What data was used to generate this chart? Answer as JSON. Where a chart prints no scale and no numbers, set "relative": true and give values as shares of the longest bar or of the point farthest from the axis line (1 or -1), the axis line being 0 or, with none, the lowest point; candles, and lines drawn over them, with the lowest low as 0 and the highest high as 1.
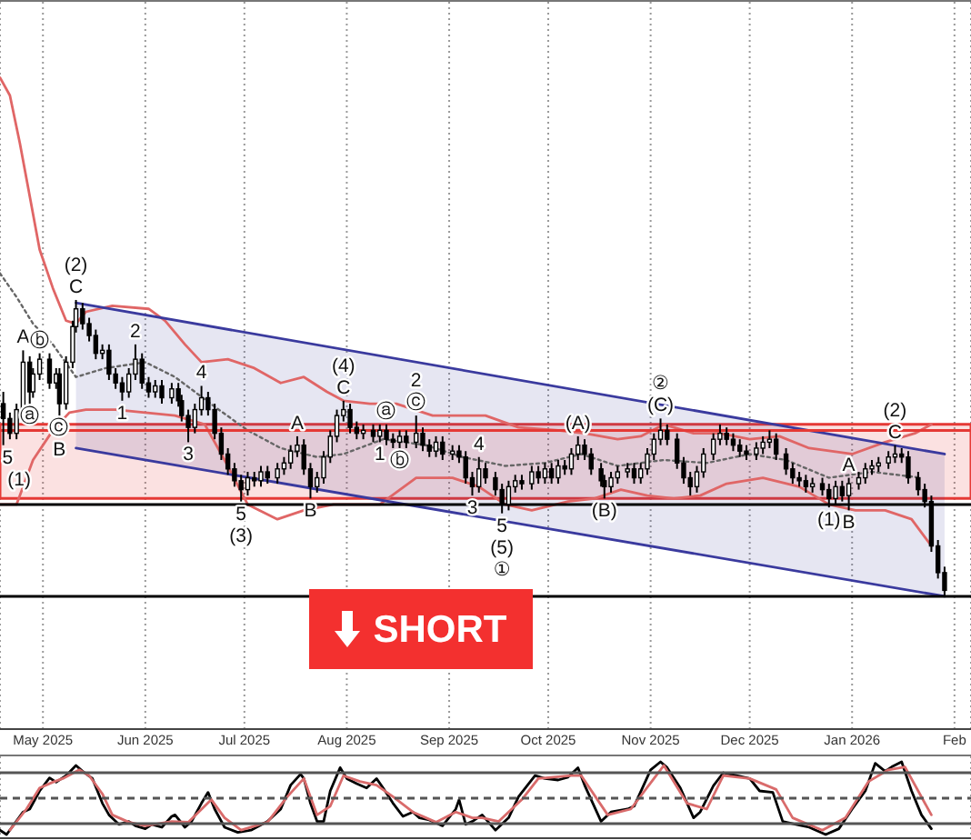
{
  "chart_data": [
    {
      "type": "candlestick",
      "relative": true,
      "color": "#000000",
      "grid": "x",
      "xlim": [
        "2025-04-18",
        "2026-02-06"
      ],
      "xticks": [
        {
          "value": "2025-05",
          "label": "May 2025"
        },
        {
          "value": "2025-06",
          "label": "Jun 2025"
        },
        {
          "value": "2025-07",
          "label": "Jul 2025"
        },
        {
          "value": "2025-08",
          "label": "Aug 2025"
        },
        {
          "value": "2025-09",
          "label": "Sep 2025"
        },
        {
          "value": "2025-10",
          "label": "Oct 2025"
        },
        {
          "value": "2025-11",
          "label": "Nov 2025"
        },
        {
          "value": "2025-12",
          "label": "Dec 2025"
        },
        {
          "value": "2026-01",
          "label": "Jan 2026"
        },
        {
          "value": "2026-02",
          "label": "Feb"
        }
      ],
      "x": [
        "2025-04-19",
        "2025-04-21",
        "2025-04-23",
        "2025-04-25",
        "2025-04-27",
        "2025-04-28",
        "2025-04-30",
        "2025-05-03",
        "2025-05-05",
        "2025-05-06",
        "2025-05-08",
        "2025-05-10",
        "2025-05-11",
        "2025-05-13",
        "2025-05-15",
        "2025-05-17",
        "2025-05-19",
        "2025-05-21",
        "2025-05-23",
        "2025-05-25",
        "2025-05-27",
        "2025-05-29",
        "2025-05-31",
        "2025-06-02",
        "2025-06-04",
        "2025-06-06",
        "2025-06-09",
        "2025-06-11",
        "2025-06-12",
        "2025-06-14",
        "2025-06-16",
        "2025-06-18",
        "2025-06-20",
        "2025-06-22",
        "2025-06-24",
        "2025-06-26",
        "2025-06-28",
        "2025-06-30",
        "2025-07-02",
        "2025-07-04",
        "2025-07-06",
        "2025-07-08",
        "2025-07-11",
        "2025-07-13",
        "2025-07-15",
        "2025-07-17",
        "2025-07-19",
        "2025-07-21",
        "2025-07-23",
        "2025-07-25",
        "2025-07-27",
        "2025-07-29",
        "2025-07-31",
        "2025-08-02",
        "2025-08-04",
        "2025-08-06",
        "2025-08-09",
        "2025-08-11",
        "2025-08-13",
        "2025-08-15",
        "2025-08-17",
        "2025-08-19",
        "2025-08-22",
        "2025-08-24",
        "2025-08-26",
        "2025-08-28",
        "2025-08-30",
        "2025-09-02",
        "2025-09-04",
        "2025-09-06",
        "2025-09-08",
        "2025-09-10",
        "2025-09-12",
        "2025-09-15",
        "2025-09-17",
        "2025-09-19",
        "2025-09-21",
        "2025-09-23",
        "2025-09-26",
        "2025-09-28",
        "2025-09-30",
        "2025-10-02",
        "2025-10-04",
        "2025-10-06",
        "2025-10-08",
        "2025-10-10",
        "2025-10-12",
        "2025-10-14",
        "2025-10-17",
        "2025-10-18",
        "2025-10-20",
        "2025-10-22",
        "2025-10-25",
        "2025-10-27",
        "2025-10-29",
        "2025-10-31",
        "2025-11-02",
        "2025-11-04",
        "2025-11-06",
        "2025-11-09",
        "2025-11-11",
        "2025-11-13",
        "2025-11-15",
        "2025-11-17",
        "2025-11-20",
        "2025-11-22",
        "2025-11-24",
        "2025-11-26",
        "2025-11-28",
        "2025-11-30",
        "2025-12-03",
        "2025-12-05",
        "2025-12-07",
        "2025-12-09",
        "2025-12-12",
        "2025-12-14",
        "2025-12-16",
        "2025-12-18",
        "2025-12-20",
        "2025-12-23",
        "2025-12-25",
        "2025-12-27",
        "2025-12-29",
        "2025-12-31",
        "2026-01-03",
        "2026-01-05",
        "2026-01-07",
        "2026-01-09",
        "2026-01-12",
        "2026-01-14",
        "2026-01-16",
        "2026-01-18",
        "2026-01-21",
        "2026-01-23",
        "2026-01-25",
        "2026-01-27",
        "2026-01-29"
      ],
      "ohlc": [
        [
          0.65,
          0.69,
          0.51,
          0.6
        ],
        [
          0.6,
          0.62,
          0.53,
          0.55
        ],
        [
          0.55,
          0.65,
          0.53,
          0.63
        ],
        [
          0.63,
          0.83,
          0.61,
          0.79
        ],
        [
          0.79,
          0.81,
          0.65,
          0.69
        ],
        [
          0.69,
          0.77,
          0.67,
          0.75
        ],
        [
          0.75,
          0.82,
          0.73,
          0.8
        ],
        [
          0.8,
          0.82,
          0.7,
          0.72
        ],
        [
          0.72,
          0.77,
          0.7,
          0.75
        ],
        [
          0.75,
          0.77,
          0.61,
          0.65
        ],
        [
          0.65,
          0.81,
          0.63,
          0.79
        ],
        [
          0.79,
          0.93,
          0.77,
          0.91
        ],
        [
          0.91,
          1.0,
          0.89,
          0.97
        ],
        [
          0.97,
          0.99,
          0.9,
          0.92
        ],
        [
          0.92,
          0.94,
          0.86,
          0.88
        ],
        [
          0.88,
          0.9,
          0.8,
          0.82
        ],
        [
          0.82,
          0.85,
          0.8,
          0.83
        ],
        [
          0.83,
          0.85,
          0.73,
          0.75
        ],
        [
          0.75,
          0.77,
          0.7,
          0.72
        ],
        [
          0.72,
          0.74,
          0.66,
          0.69
        ],
        [
          0.69,
          0.77,
          0.67,
          0.75
        ],
        [
          0.75,
          0.85,
          0.73,
          0.8
        ],
        [
          0.8,
          0.82,
          0.7,
          0.72
        ],
        [
          0.72,
          0.74,
          0.67,
          0.69
        ],
        [
          0.69,
          0.73,
          0.67,
          0.71
        ],
        [
          0.71,
          0.73,
          0.65,
          0.67
        ],
        [
          0.67,
          0.72,
          0.65,
          0.7
        ],
        [
          0.7,
          0.72,
          0.64,
          0.66
        ],
        [
          0.66,
          0.68,
          0.59,
          0.61
        ],
        [
          0.61,
          0.63,
          0.52,
          0.57
        ],
        [
          0.57,
          0.65,
          0.55,
          0.63
        ],
        [
          0.63,
          0.71,
          0.61,
          0.67
        ],
        [
          0.67,
          0.69,
          0.61,
          0.63
        ],
        [
          0.63,
          0.65,
          0.53,
          0.55
        ],
        [
          0.55,
          0.57,
          0.46,
          0.48
        ],
        [
          0.48,
          0.5,
          0.41,
          0.43
        ],
        [
          0.43,
          0.45,
          0.37,
          0.39
        ],
        [
          0.39,
          0.41,
          0.32,
          0.36
        ],
        [
          0.36,
          0.42,
          0.34,
          0.4
        ],
        [
          0.4,
          0.42,
          0.37,
          0.39
        ],
        [
          0.39,
          0.44,
          0.37,
          0.42
        ],
        [
          0.42,
          0.44,
          0.38,
          0.4
        ],
        [
          0.4,
          0.45,
          0.38,
          0.43
        ],
        [
          0.43,
          0.47,
          0.41,
          0.45
        ],
        [
          0.45,
          0.51,
          0.43,
          0.49
        ],
        [
          0.49,
          0.54,
          0.47,
          0.51
        ],
        [
          0.51,
          0.53,
          0.41,
          0.43
        ],
        [
          0.43,
          0.45,
          0.33,
          0.37
        ],
        [
          0.37,
          0.42,
          0.35,
          0.4
        ],
        [
          0.4,
          0.49,
          0.38,
          0.47
        ],
        [
          0.47,
          0.56,
          0.45,
          0.54
        ],
        [
          0.54,
          0.63,
          0.52,
          0.61
        ],
        [
          0.61,
          0.66,
          0.59,
          0.63
        ],
        [
          0.63,
          0.65,
          0.55,
          0.57
        ],
        [
          0.57,
          0.59,
          0.53,
          0.55
        ],
        [
          0.55,
          0.58,
          0.53,
          0.56
        ],
        [
          0.56,
          0.58,
          0.52,
          0.54
        ],
        [
          0.54,
          0.58,
          0.52,
          0.56
        ],
        [
          0.56,
          0.58,
          0.51,
          0.53
        ],
        [
          0.53,
          0.55,
          0.5,
          0.52
        ],
        [
          0.52,
          0.56,
          0.5,
          0.54
        ],
        [
          0.54,
          0.56,
          0.5,
          0.52
        ],
        [
          0.52,
          0.61,
          0.5,
          0.55
        ],
        [
          0.55,
          0.57,
          0.49,
          0.51
        ],
        [
          0.51,
          0.53,
          0.47,
          0.49
        ],
        [
          0.49,
          0.54,
          0.47,
          0.52
        ],
        [
          0.52,
          0.54,
          0.46,
          0.48
        ],
        [
          0.48,
          0.51,
          0.46,
          0.49
        ],
        [
          0.49,
          0.51,
          0.45,
          0.47
        ],
        [
          0.47,
          0.49,
          0.38,
          0.4
        ],
        [
          0.4,
          0.42,
          0.34,
          0.37
        ],
        [
          0.37,
          0.47,
          0.35,
          0.43
        ],
        [
          0.43,
          0.45,
          0.38,
          0.4
        ],
        [
          0.4,
          0.42,
          0.34,
          0.36
        ],
        [
          0.36,
          0.38,
          0.28,
          0.31
        ],
        [
          0.31,
          0.39,
          0.29,
          0.37
        ],
        [
          0.37,
          0.41,
          0.35,
          0.39
        ],
        [
          0.39,
          0.41,
          0.36,
          0.38
        ],
        [
          0.38,
          0.44,
          0.36,
          0.42
        ],
        [
          0.42,
          0.44,
          0.38,
          0.4
        ],
        [
          0.4,
          0.45,
          0.38,
          0.43
        ],
        [
          0.43,
          0.45,
          0.38,
          0.4
        ],
        [
          0.4,
          0.46,
          0.38,
          0.44
        ],
        [
          0.44,
          0.46,
          0.41,
          0.43
        ],
        [
          0.43,
          0.5,
          0.41,
          0.48
        ],
        [
          0.48,
          0.54,
          0.46,
          0.51
        ],
        [
          0.51,
          0.53,
          0.46,
          0.48
        ],
        [
          0.48,
          0.5,
          0.41,
          0.43
        ],
        [
          0.43,
          0.45,
          0.37,
          0.39
        ],
        [
          0.39,
          0.41,
          0.33,
          0.37
        ],
        [
          0.37,
          0.42,
          0.35,
          0.4
        ],
        [
          0.4,
          0.44,
          0.38,
          0.42
        ],
        [
          0.42,
          0.45,
          0.4,
          0.43
        ],
        [
          0.43,
          0.45,
          0.38,
          0.4
        ],
        [
          0.4,
          0.45,
          0.38,
          0.43
        ],
        [
          0.43,
          0.5,
          0.41,
          0.48
        ],
        [
          0.48,
          0.55,
          0.46,
          0.53
        ],
        [
          0.53,
          0.6,
          0.51,
          0.56
        ],
        [
          0.56,
          0.58,
          0.51,
          0.53
        ],
        [
          0.53,
          0.55,
          0.43,
          0.45
        ],
        [
          0.45,
          0.47,
          0.38,
          0.4
        ],
        [
          0.4,
          0.42,
          0.34,
          0.37
        ],
        [
          0.37,
          0.44,
          0.35,
          0.42
        ],
        [
          0.42,
          0.5,
          0.4,
          0.48
        ],
        [
          0.48,
          0.55,
          0.46,
          0.53
        ],
        [
          0.53,
          0.58,
          0.51,
          0.55
        ],
        [
          0.55,
          0.57,
          0.51,
          0.53
        ],
        [
          0.53,
          0.55,
          0.49,
          0.51
        ],
        [
          0.51,
          0.53,
          0.47,
          0.49
        ],
        [
          0.49,
          0.51,
          0.46,
          0.48
        ],
        [
          0.48,
          0.52,
          0.46,
          0.5
        ],
        [
          0.5,
          0.54,
          0.48,
          0.52
        ],
        [
          0.52,
          0.56,
          0.5,
          0.53
        ],
        [
          0.53,
          0.55,
          0.46,
          0.48
        ],
        [
          0.48,
          0.5,
          0.41,
          0.43
        ],
        [
          0.43,
          0.45,
          0.38,
          0.4
        ],
        [
          0.4,
          0.42,
          0.37,
          0.39
        ],
        [
          0.39,
          0.41,
          0.35,
          0.37
        ],
        [
          0.37,
          0.4,
          0.35,
          0.38
        ],
        [
          0.38,
          0.4,
          0.34,
          0.36
        ],
        [
          0.36,
          0.38,
          0.3,
          0.33
        ],
        [
          0.33,
          0.39,
          0.31,
          0.37
        ],
        [
          0.37,
          0.39,
          0.32,
          0.34
        ],
        [
          0.34,
          0.4,
          0.29,
          0.38
        ],
        [
          0.38,
          0.42,
          0.36,
          0.4
        ],
        [
          0.4,
          0.45,
          0.38,
          0.43
        ],
        [
          0.43,
          0.46,
          0.41,
          0.44
        ],
        [
          0.44,
          0.47,
          0.42,
          0.45
        ],
        [
          0.45,
          0.49,
          0.43,
          0.47
        ],
        [
          0.47,
          0.51,
          0.45,
          0.48
        ],
        [
          0.48,
          0.5,
          0.45,
          0.47
        ],
        [
          0.47,
          0.49,
          0.38,
          0.4
        ],
        [
          0.4,
          0.42,
          0.34,
          0.36
        ],
        [
          0.36,
          0.38,
          0.3,
          0.32
        ],
        [
          0.32,
          0.34,
          0.15,
          0.17
        ],
        [
          0.17,
          0.19,
          0.06,
          0.08
        ],
        [
          0.08,
          0.1,
          0.0,
          0.02
        ]
      ],
      "series": [
        {
          "type": "line",
          "color": "#e06666",
          "x": [
            "2025-04-18",
            "2025-04-21",
            "2025-04-24",
            "2025-04-27",
            "2025-04-30",
            "2025-05-04",
            "2025-05-08",
            "2025-05-11",
            "2025-05-14",
            "2025-05-22",
            "2025-06-02",
            "2025-06-07",
            "2025-06-13",
            "2025-06-18",
            "2025-06-26",
            "2025-07-04",
            "2025-07-12",
            "2025-07-19",
            "2025-07-26",
            "2025-07-31",
            "2025-08-08",
            "2025-08-16",
            "2025-08-27",
            "2025-09-12",
            "2025-09-22",
            "2025-10-04",
            "2025-10-12",
            "2025-10-22",
            "2025-10-29",
            "2025-11-05",
            "2025-11-14",
            "2025-11-22",
            "2025-12-01",
            "2025-12-10",
            "2025-12-19",
            "2026-01-01",
            "2026-01-11",
            "2026-01-20",
            "2026-01-25"
          ],
          "values": [
            1.75,
            1.69,
            1.53,
            1.35,
            1.17,
            1.04,
            0.93,
            0.92,
            0.96,
            0.98,
            0.97,
            0.93,
            0.85,
            0.79,
            0.8,
            0.77,
            0.72,
            0.74,
            0.69,
            0.66,
            0.65,
            0.65,
            0.61,
            0.61,
            0.57,
            0.56,
            0.55,
            0.53,
            0.54,
            0.58,
            0.55,
            0.55,
            0.53,
            0.54,
            0.5,
            0.48,
            0.52,
            0.55,
            0.58
          ]
        },
        {
          "type": "line",
          "color": "#e06666",
          "x": [
            "2025-04-18",
            "2025-04-23",
            "2025-04-28",
            "2025-05-04",
            "2025-05-09",
            "2025-05-14",
            "2025-05-23",
            "2025-06-10",
            "2025-06-19",
            "2025-06-25",
            "2025-07-02",
            "2025-07-11",
            "2025-07-19",
            "2025-07-28",
            "2025-08-11",
            "2025-08-22",
            "2025-09-02",
            "2025-09-10",
            "2025-09-18",
            "2025-09-26",
            "2025-10-07",
            "2025-10-15",
            "2025-10-23",
            "2025-10-31",
            "2025-11-08",
            "2025-11-16",
            "2025-11-24",
            "2025-12-05",
            "2025-12-16",
            "2025-12-25",
            "2026-01-02",
            "2026-01-11",
            "2026-01-19",
            "2026-01-25"
          ],
          "values": [
            0.31,
            0.31,
            0.46,
            0.56,
            0.62,
            0.63,
            0.63,
            0.61,
            0.58,
            0.46,
            0.31,
            0.26,
            0.29,
            0.31,
            0.31,
            0.4,
            0.4,
            0.37,
            0.31,
            0.29,
            0.32,
            0.33,
            0.36,
            0.34,
            0.33,
            0.34,
            0.38,
            0.4,
            0.37,
            0.31,
            0.29,
            0.29,
            0.26,
            0.17
          ]
        },
        {
          "type": "line",
          "color": "#666666",
          "line_style": "dotted",
          "x": [
            "2025-04-18",
            "2025-04-23",
            "2025-04-28",
            "2025-05-04",
            "2025-05-11",
            "2025-05-20",
            "2025-06-01",
            "2025-06-10",
            "2025-06-22",
            "2025-07-02",
            "2025-07-12",
            "2025-07-23",
            "2025-07-31",
            "2025-08-12",
            "2025-08-25",
            "2025-09-05",
            "2025-09-18",
            "2025-09-30",
            "2025-10-11",
            "2025-10-22",
            "2025-11-05",
            "2025-11-18",
            "2025-12-01",
            "2025-12-12",
            "2025-12-25",
            "2026-01-07",
            "2026-01-22"
          ],
          "values": [
            1.09,
            1.01,
            0.92,
            0.85,
            0.74,
            0.77,
            0.79,
            0.74,
            0.64,
            0.56,
            0.5,
            0.47,
            0.48,
            0.53,
            0.51,
            0.47,
            0.44,
            0.45,
            0.48,
            0.44,
            0.46,
            0.45,
            0.48,
            0.46,
            0.4,
            0.42,
            0.4
          ]
        },
        {
          "type": "line",
          "color": "#3a3a9e",
          "x": [
            "2025-05-11",
            "2026-01-29"
          ],
          "values": [
            0.99,
            0.48
          ],
          "lower": [
            0.5,
            0
          ],
          "upper": [
            0.99,
            0.48
          ]
        },
        {
          "type": "line",
          "color": "#3a3a9e",
          "x": [
            "2025-05-11",
            "2026-01-29"
          ],
          "values": [
            0.5,
            0
          ]
        }
      ],
      "ref_lines": [
        {
          "axis": "y",
          "value": 0.56,
          "color": "#e53935"
        },
        {
          "axis": "y",
          "value": 0.31,
          "color": "#000000"
        },
        {
          "axis": "y",
          "value": 0,
          "color": "#000000"
        }
      ],
      "bands": [
        {
          "axis": "y",
          "from": 0.33,
          "to": 0.58,
          "color": "#e53935"
        }
      ],
      "annotations": [
        {
          "text": "5",
          "x": "2025-04-19",
          "y": 0.51
        },
        {
          "text": "(1)",
          "x": "2025-04-19",
          "y": 0.51
        },
        {
          "text": "A",
          "x": "2025-04-25",
          "y": 0.83
        },
        {
          "text": "ⓐ",
          "x": "2025-04-27",
          "y": 0.65
        },
        {
          "text": "ⓑ",
          "x": "2025-04-30",
          "y": 0.82
        },
        {
          "text": "ⓒ",
          "x": "2025-05-06",
          "y": 0.61
        },
        {
          "text": "B",
          "x": "2025-05-06",
          "y": 0.61
        },
        {
          "text": "(2)",
          "x": "2025-05-11",
          "y": 1.0
        },
        {
          "text": "C",
          "x": "2025-05-11",
          "y": 1.0
        },
        {
          "text": "1",
          "x": "2025-05-25",
          "y": 0.66
        },
        {
          "text": "2",
          "x": "2025-05-29",
          "y": 0.85
        },
        {
          "text": "3",
          "x": "2025-06-14",
          "y": 0.52
        },
        {
          "text": "4",
          "x": "2025-06-18",
          "y": 0.71
        },
        {
          "text": "5",
          "x": "2025-06-30",
          "y": 0.32
        },
        {
          "text": "(3)",
          "x": "2025-06-30",
          "y": 0.32
        },
        {
          "text": "A",
          "x": "2025-07-17",
          "y": 0.54
        },
        {
          "text": "B",
          "x": "2025-07-21",
          "y": 0.33
        },
        {
          "text": "(4)",
          "x": "2025-07-31",
          "y": 0.66
        },
        {
          "text": "C",
          "x": "2025-07-31",
          "y": 0.66
        },
        {
          "text": "1",
          "x": "2025-08-11",
          "y": 0.52
        },
        {
          "text": "ⓐ",
          "x": "2025-08-13",
          "y": 0.58
        },
        {
          "text": "ⓑ",
          "x": "2025-08-17",
          "y": 0.5
        },
        {
          "text": "2",
          "x": "2025-08-22",
          "y": 0.61
        },
        {
          "text": "ⓒ",
          "x": "2025-08-22",
          "y": 0.61
        },
        {
          "text": "3",
          "x": "2025-09-08",
          "y": 0.34
        },
        {
          "text": "4",
          "x": "2025-09-10",
          "y": 0.47
        },
        {
          "text": "5",
          "x": "2025-09-17",
          "y": 0.28
        },
        {
          "text": "(5)",
          "x": "2025-09-17",
          "y": 0.28
        },
        {
          "text": "①",
          "x": "2025-09-17",
          "y": 0.28
        },
        {
          "text": "(A)",
          "x": "2025-10-10",
          "y": 0.54
        },
        {
          "text": "(B)",
          "x": "2025-10-18",
          "y": 0.33
        },
        {
          "text": "②",
          "x": "2025-11-04",
          "y": 0.6
        },
        {
          "text": "(C)",
          "x": "2025-11-04",
          "y": 0.6
        },
        {
          "text": "(1)",
          "x": "2025-12-25",
          "y": 0.3
        },
        {
          "text": "A",
          "x": "2025-12-31",
          "y": 0.4
        },
        {
          "text": "B",
          "x": "2025-12-31",
          "y": 0.29
        },
        {
          "text": "(2)",
          "x": "2026-01-14",
          "y": 0.51
        },
        {
          "text": "C",
          "x": "2026-01-14",
          "y": 0.51
        },
        "SHORT"
      ]
    },
    {
      "type": "line",
      "relative": true,
      "grid": "x",
      "tick_labels": false,
      "xlim": [
        "2025-04-18",
        "2026-02-06"
      ],
      "xticks": [
        {
          "value": "2025-05",
          "label": null
        },
        {
          "value": "2025-06",
          "label": null
        },
        {
          "value": "2025-07",
          "label": null
        },
        {
          "value": "2025-08",
          "label": null
        },
        {
          "value": "2025-09",
          "label": null
        },
        {
          "value": "2025-10",
          "label": null
        },
        {
          "value": "2025-11",
          "label": null
        },
        {
          "value": "2025-12",
          "label": null
        },
        {
          "value": "2026-01",
          "label": null
        },
        {
          "value": "2026-02",
          "label": null
        }
      ],
      "series": [
        {
          "color": "#000000",
          "x": [
            "2025-04-18",
            "2025-04-20",
            "2025-04-25",
            "2025-04-27",
            "2025-04-30",
            "2025-05-03",
            "2025-05-05",
            "2025-05-08",
            "2025-05-11",
            "2025-05-13",
            "2025-05-16",
            "2025-05-19",
            "2025-05-21",
            "2025-05-24",
            "2025-05-27",
            "2025-05-29",
            "2025-06-01",
            "2025-06-03",
            "2025-06-06",
            "2025-06-09",
            "2025-06-10",
            "2025-06-13",
            "2025-06-15",
            "2025-06-18",
            "2025-06-20",
            "2025-06-22",
            "2025-06-25",
            "2025-06-29",
            "2025-07-03",
            "2025-07-08",
            "2025-07-12",
            "2025-07-15",
            "2025-07-18",
            "2025-07-19",
            "2025-07-21",
            "2025-07-23",
            "2025-07-25",
            "2025-07-27",
            "2025-07-30",
            "2025-08-01",
            "2025-08-04",
            "2025-08-07",
            "2025-08-10",
            "2025-08-12",
            "2025-08-15",
            "2025-08-18",
            "2025-08-21",
            "2025-08-23",
            "2025-08-26",
            "2025-08-30",
            "2025-09-03",
            "2025-09-04",
            "2025-09-06",
            "2025-09-08",
            "2025-09-11",
            "2025-09-15",
            "2025-09-19",
            "2025-09-22",
            "2025-09-27",
            "2025-09-30",
            "2025-10-04",
            "2025-10-07",
            "2025-10-10",
            "2025-10-12",
            "2025-10-17",
            "2025-10-20",
            "2025-10-25",
            "2025-10-27",
            "2025-11-01",
            "2025-11-04",
            "2025-11-06",
            "2025-11-10",
            "2025-11-14",
            "2025-11-16",
            "2025-11-20",
            "2025-11-23",
            "2025-11-27",
            "2025-12-01",
            "2025-12-04",
            "2025-12-08",
            "2025-12-11",
            "2025-12-15",
            "2025-12-19",
            "2025-12-24",
            "2025-12-28",
            "2026-01-01",
            "2026-01-05",
            "2026-01-08",
            "2026-01-11",
            "2026-01-13",
            "2026-01-16",
            "2026-01-19",
            "2026-01-22",
            "2026-01-25"
          ],
          "values": [
            0.06,
            0,
            0.31,
            0.35,
            0.6,
            0.78,
            0.72,
            0.81,
            0.95,
            0.87,
            0.77,
            0.43,
            0.27,
            0.14,
            0.18,
            0.12,
            0.08,
            0.14,
            0.1,
            0.25,
            0.27,
            0.1,
            0.18,
            0.43,
            0.58,
            0.35,
            0.1,
            0.03,
            0.06,
            0.18,
            0.35,
            0.68,
            0.83,
            0.77,
            0.43,
            0.18,
            0.18,
            0.6,
            0.92,
            0.77,
            0.7,
            0.64,
            0.77,
            0.64,
            0.43,
            0.25,
            0.31,
            0.23,
            0.2,
            0.12,
            0.35,
            0.48,
            0.14,
            0.18,
            0.27,
            0.06,
            0.23,
            0.52,
            0.81,
            0.77,
            0.75,
            0.79,
            0.92,
            0.68,
            0.18,
            0.31,
            0.35,
            0.39,
            0.89,
            1,
            0.92,
            0.64,
            0.23,
            0.31,
            0.67,
            0.85,
            0.81,
            0.77,
            0.6,
            0.58,
            0.18,
            0.14,
            0.1,
            0,
            0.08,
            0.35,
            0.6,
            0.98,
            0.87,
            0.93,
            1,
            0.6,
            0.27,
            0.08
          ]
        },
        {
          "color": "#d96b6b",
          "x": [
            "2025-04-21",
            "2025-04-26",
            "2025-04-30",
            "2025-05-04",
            "2025-05-07",
            "2025-05-12",
            "2025-05-15",
            "2025-05-19",
            "2025-05-22",
            "2025-05-27",
            "2025-06-01",
            "2025-06-09",
            "2025-06-14",
            "2025-06-21",
            "2025-06-25",
            "2025-06-30",
            "2025-07-08",
            "2025-07-14",
            "2025-07-19",
            "2025-07-23",
            "2025-07-27",
            "2025-07-31",
            "2025-08-05",
            "2025-08-10",
            "2025-08-15",
            "2025-08-21",
            "2025-08-28",
            "2025-09-03",
            "2025-09-08",
            "2025-09-11",
            "2025-09-16",
            "2025-09-23",
            "2025-09-28",
            "2025-10-08",
            "2025-10-11",
            "2025-10-19",
            "2025-10-26",
            "2025-11-02",
            "2025-11-05",
            "2025-11-12",
            "2025-11-18",
            "2025-11-23",
            "2025-12-01",
            "2025-12-09",
            "2025-12-14",
            "2025-12-23",
            "2025-12-30",
            "2026-01-06",
            "2026-01-12",
            "2026-01-17",
            "2026-01-25"
          ],
          "values": [
            0.06,
            0.35,
            0.64,
            0.72,
            0.77,
            0.89,
            0.81,
            0.56,
            0.27,
            0.17,
            0.12,
            0.18,
            0.17,
            0.48,
            0.23,
            0.06,
            0.17,
            0.52,
            0.77,
            0.27,
            0.39,
            0.81,
            0.73,
            0.68,
            0.52,
            0.31,
            0.17,
            0.31,
            0.23,
            0.23,
            0.18,
            0.48,
            0.77,
            0.81,
            0.81,
            0.27,
            0.35,
            0.77,
            0.95,
            0.43,
            0.35,
            0.81,
            0.77,
            0.62,
            0.23,
            0.06,
            0.23,
            0.73,
            0.89,
            0.93,
            0.27
          ]
        }
      ],
      "ref_lines": [
        {
          "axis": "y",
          "value": 0.85,
          "color": "#555555"
        },
        {
          "axis": "y",
          "value": 0.5,
          "color": "#555555",
          "line_style": "dashed"
        },
        {
          "axis": "y",
          "value": 0.15,
          "color": "#555555"
        }
      ]
    }
  ]
}
